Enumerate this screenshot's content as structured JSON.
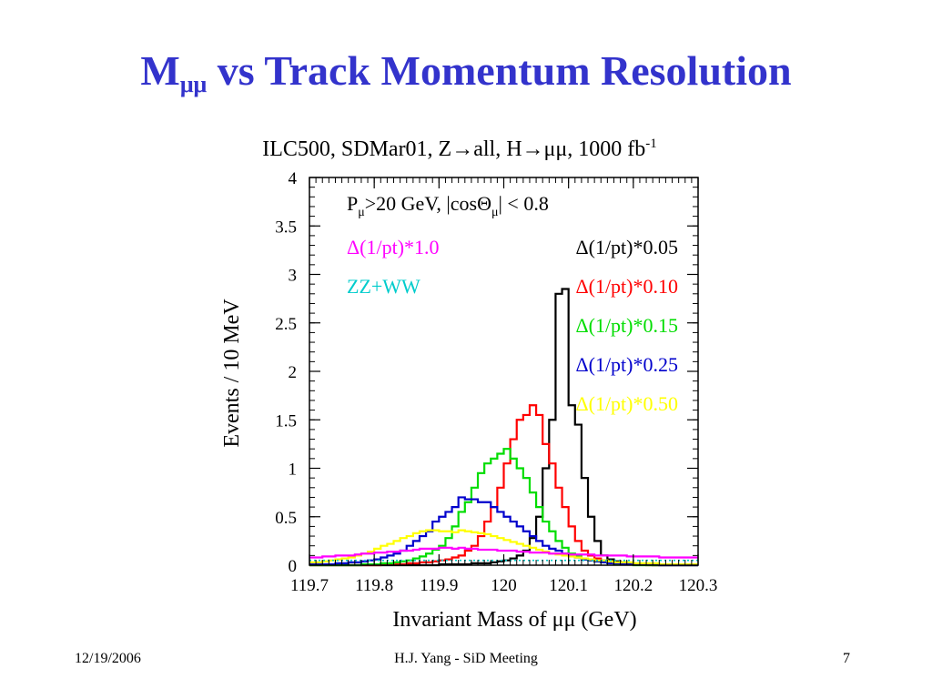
{
  "slide": {
    "title_main": "M",
    "title_sub": "μμ",
    "title_rest": " vs Track Momentum Resolution"
  },
  "footer": {
    "date": "12/19/2006",
    "author": "H.J. Yang - SiD Meeting",
    "page": "7"
  },
  "chart_data": {
    "type": "line",
    "title": "ILC500, SDMar01, Z→all, H→μμ, 1000 fb",
    "title_sup": "-1",
    "cuts": {
      "p_label": "P",
      "p_sub": "μ",
      "p_rest": ">20 GeV, |cosΘ",
      "cos_sub": "μ",
      "cos_rest": "| < 0.8"
    },
    "xlabel": "Invariant Mass of μμ (GeV)",
    "ylabel": "Events / 10 MeV",
    "xlim": [
      119.7,
      120.3
    ],
    "ylim": [
      0,
      4
    ],
    "xticks": [
      "119.7",
      "119.8",
      "119.9",
      "120",
      "120.1",
      "120.2",
      "120.3"
    ],
    "yticks": [
      "0",
      "0.5",
      "1",
      "1.5",
      "2",
      "2.5",
      "3",
      "3.5",
      "4"
    ],
    "bin_width": 0.01,
    "legend": [
      {
        "label": "Δ(1/pt)*1.0",
        "color": "#ff00ff",
        "position": "left"
      },
      {
        "label": "ZZ+WW",
        "color": "#00cccc",
        "position": "left"
      },
      {
        "label": "Δ(1/pt)*0.05",
        "color": "#000000",
        "position": "right"
      },
      {
        "label": "Δ(1/pt)*0.10",
        "color": "#ff0000",
        "position": "right"
      },
      {
        "label": "Δ(1/pt)*0.15",
        "color": "#00dd00",
        "position": "right"
      },
      {
        "label": "Δ(1/pt)*0.25",
        "color": "#0000cc",
        "position": "right"
      },
      {
        "label": "Δ(1/pt)*0.50",
        "color": "#ffff00",
        "position": "right"
      }
    ],
    "series": [
      {
        "name": "Δ(1/pt)*0.05",
        "color": "#000000",
        "values": [
          0,
          0,
          0,
          0,
          0,
          0,
          0,
          0,
          0,
          0,
          0,
          0,
          0,
          0,
          0,
          0,
          0,
          0,
          0,
          0,
          0.01,
          0.01,
          0.01,
          0.01,
          0.01,
          0.02,
          0.02,
          0.02,
          0.03,
          0.04,
          0.05,
          0.07,
          0.1,
          0.15,
          0.28,
          0.5,
          1.0,
          1.5,
          2.8,
          2.85,
          1.65,
          1.45,
          0.9,
          0.5,
          0.25,
          0.1,
          0.06,
          0.04,
          0.03,
          0.02,
          0.01,
          0.01,
          0.01,
          0,
          0,
          0,
          0,
          0,
          0,
          0
        ]
      },
      {
        "name": "Δ(1/pt)*0.10",
        "color": "#ff0000",
        "values": [
          0,
          0,
          0,
          0,
          0,
          0,
          0,
          0,
          0,
          0,
          0,
          0.01,
          0.01,
          0.01,
          0.01,
          0.02,
          0.02,
          0.03,
          0.03,
          0.04,
          0.05,
          0.06,
          0.08,
          0.1,
          0.15,
          0.2,
          0.3,
          0.45,
          0.6,
          0.8,
          1.05,
          1.3,
          1.5,
          1.55,
          1.65,
          1.55,
          1.25,
          1.05,
          0.8,
          0.6,
          0.4,
          0.25,
          0.15,
          0.1,
          0.07,
          0.05,
          0.03,
          0.02,
          0.02,
          0.01,
          0.01,
          0.01,
          0,
          0,
          0,
          0,
          0,
          0,
          0,
          0
        ]
      },
      {
        "name": "Δ(1/pt)*0.15",
        "color": "#00dd00",
        "values": [
          0,
          0,
          0,
          0,
          0,
          0,
          0,
          0,
          0.01,
          0.01,
          0.01,
          0.02,
          0.02,
          0.03,
          0.04,
          0.05,
          0.07,
          0.09,
          0.12,
          0.16,
          0.2,
          0.28,
          0.4,
          0.55,
          0.65,
          0.8,
          0.95,
          1.05,
          1.1,
          1.15,
          1.2,
          1.1,
          1.0,
          0.9,
          0.75,
          0.6,
          0.45,
          0.35,
          0.25,
          0.18,
          0.12,
          0.09,
          0.06,
          0.05,
          0.04,
          0.03,
          0.02,
          0.01,
          0.01,
          0.01,
          0,
          0,
          0,
          0,
          0,
          0,
          0,
          0,
          0,
          0
        ]
      },
      {
        "name": "Δ(1/pt)*0.25",
        "color": "#0000cc",
        "values": [
          0.01,
          0.01,
          0.01,
          0.01,
          0.02,
          0.02,
          0.03,
          0.03,
          0.04,
          0.05,
          0.06,
          0.08,
          0.1,
          0.12,
          0.15,
          0.2,
          0.25,
          0.3,
          0.35,
          0.45,
          0.5,
          0.55,
          0.6,
          0.7,
          0.68,
          0.68,
          0.65,
          0.65,
          0.6,
          0.55,
          0.5,
          0.45,
          0.4,
          0.35,
          0.3,
          0.25,
          0.2,
          0.17,
          0.15,
          0.12,
          0.1,
          0.08,
          0.06,
          0.05,
          0.04,
          0.03,
          0.02,
          0.02,
          0.01,
          0.01,
          0.01,
          0.01,
          0.01,
          0.01,
          0,
          0,
          0,
          0,
          0,
          0
        ]
      },
      {
        "name": "Δ(1/pt)*0.50",
        "color": "#ffff00",
        "values": [
          0.03,
          0.03,
          0.04,
          0.05,
          0.06,
          0.07,
          0.08,
          0.1,
          0.12,
          0.14,
          0.17,
          0.2,
          0.22,
          0.25,
          0.28,
          0.3,
          0.33,
          0.35,
          0.36,
          0.36,
          0.35,
          0.35,
          0.34,
          0.36,
          0.35,
          0.34,
          0.33,
          0.32,
          0.3,
          0.28,
          0.26,
          0.24,
          0.22,
          0.2,
          0.18,
          0.16,
          0.14,
          0.12,
          0.11,
          0.1,
          0.09,
          0.08,
          0.07,
          0.06,
          0.05,
          0.05,
          0.04,
          0.03,
          0.03,
          0.03,
          0.02,
          0.02,
          0.02,
          0.02,
          0.01,
          0.01,
          0.01,
          0.01,
          0.01,
          0.01
        ]
      },
      {
        "name": "Δ(1/pt)*1.0",
        "color": "#ff00ff",
        "values": [
          0.08,
          0.08,
          0.09,
          0.09,
          0.1,
          0.1,
          0.1,
          0.11,
          0.12,
          0.12,
          0.13,
          0.13,
          0.14,
          0.14,
          0.15,
          0.15,
          0.16,
          0.17,
          0.17,
          0.17,
          0.18,
          0.18,
          0.17,
          0.18,
          0.17,
          0.17,
          0.16,
          0.16,
          0.16,
          0.15,
          0.15,
          0.15,
          0.14,
          0.14,
          0.13,
          0.13,
          0.13,
          0.12,
          0.12,
          0.12,
          0.11,
          0.11,
          0.11,
          0.11,
          0.1,
          0.1,
          0.1,
          0.1,
          0.1,
          0.09,
          0.09,
          0.09,
          0.09,
          0.09,
          0.08,
          0.08,
          0.08,
          0.08,
          0.08,
          0.08
        ]
      },
      {
        "name": "ZZ+WW",
        "color": "#00cccc",
        "dashed": true,
        "values": [
          0.05,
          0.05,
          0.05,
          0.05,
          0.05,
          0.05,
          0.05,
          0.05,
          0.05,
          0.05,
          0.05,
          0.05,
          0.05,
          0.05,
          0.05,
          0.05,
          0.05,
          0.05,
          0.05,
          0.05,
          0.05,
          0.05,
          0.05,
          0.05,
          0.05,
          0.05,
          0.05,
          0.05,
          0.05,
          0.05,
          0.05,
          0.05,
          0.05,
          0.05,
          0.05,
          0.05,
          0.05,
          0.05,
          0.05,
          0.05,
          0.05,
          0.05,
          0.05,
          0.05,
          0.05,
          0.05,
          0.05,
          0.05,
          0.05,
          0.05,
          0.05,
          0.05,
          0.05,
          0.05,
          0.05,
          0.05,
          0.05,
          0.05,
          0.05,
          0.05
        ]
      }
    ]
  }
}
